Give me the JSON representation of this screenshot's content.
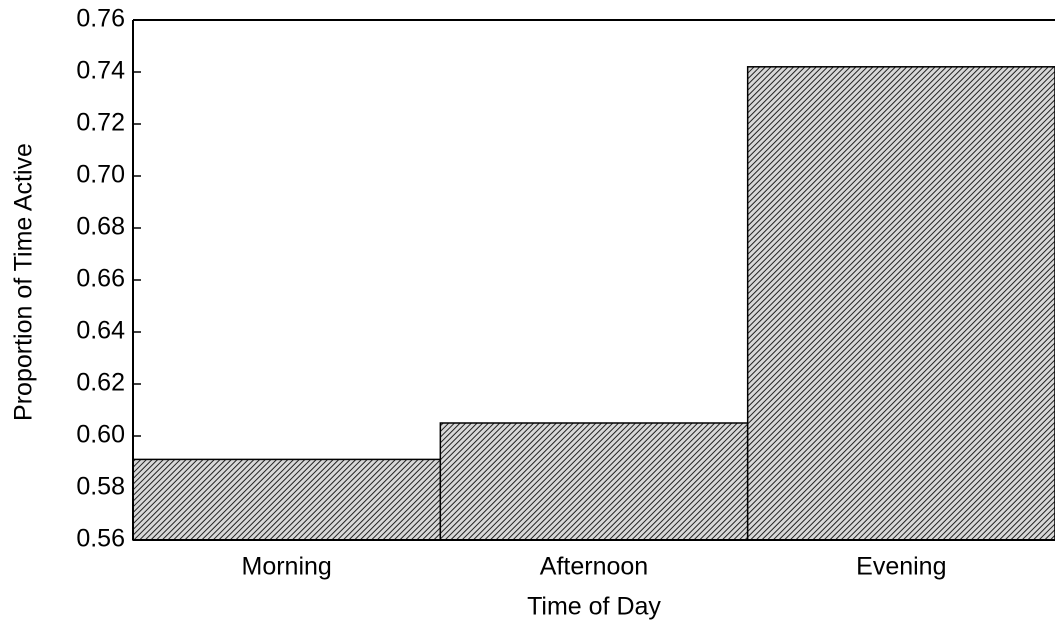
{
  "chart_data": {
    "type": "bar",
    "x_label": "Time of Day",
    "y_label": "Proportion of Time Active",
    "categories": [
      "Morning",
      "Afternoon",
      "Evening"
    ],
    "values": [
      0.591,
      0.605,
      0.742
    ],
    "color": "#222222",
    "ylim": [
      0.56,
      0.76
    ],
    "yticks": [
      0.56,
      0.58,
      {
        "value": 0.6,
        "label": "0.60"
      },
      0.62,
      0.64,
      0.66,
      0.68,
      {
        "value": 0.7,
        "label": "0.70"
      },
      0.72,
      0.74,
      0.76
    ]
  }
}
